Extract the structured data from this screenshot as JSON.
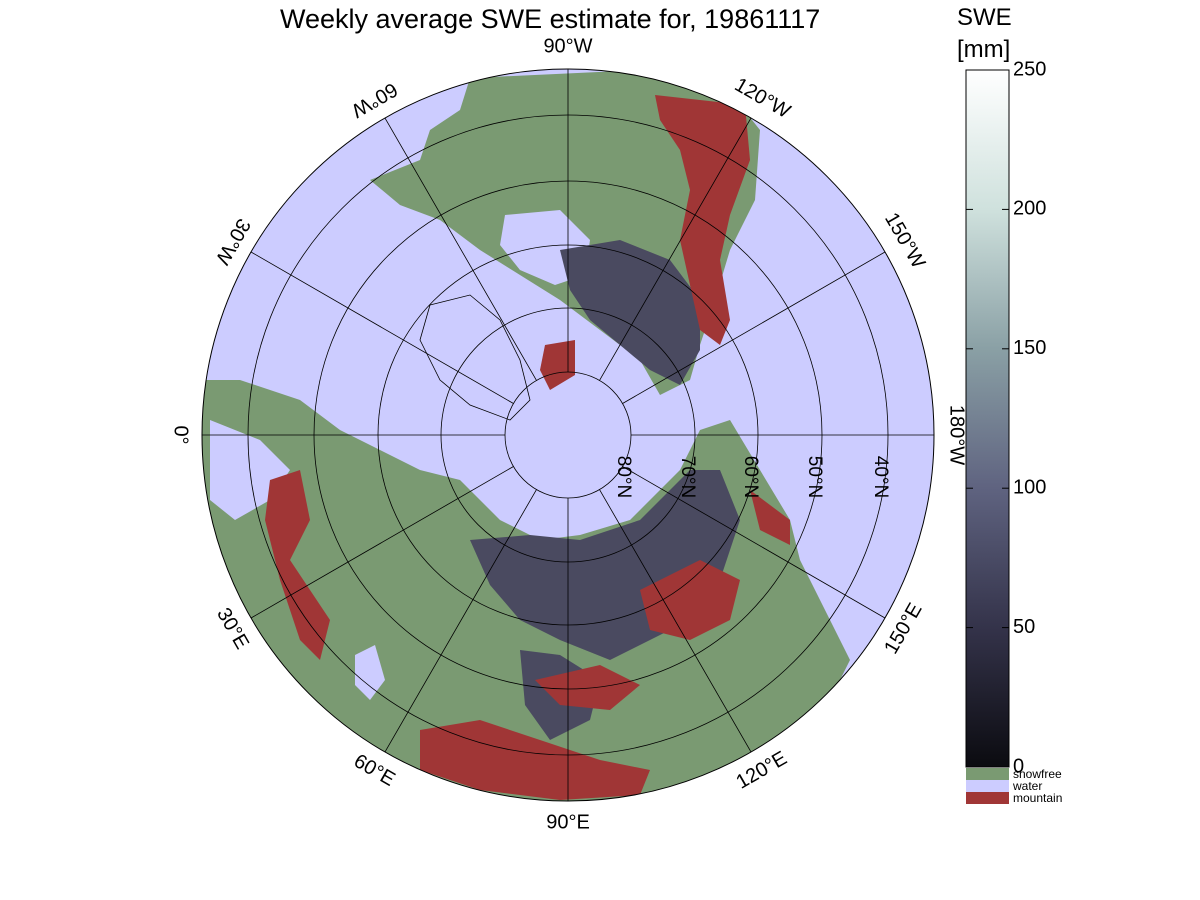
{
  "title": "Weekly average SWE estimate for, 19861117",
  "colorbar": {
    "title": "SWE",
    "unit": "[mm]",
    "ticks": [
      0,
      50,
      100,
      150,
      200,
      250
    ],
    "range": [
      0,
      250
    ],
    "gradient_colors": [
      "#0b0b10",
      "#34334a",
      "#5f6380",
      "#8aa0a5",
      "#cfe1dd",
      "#ffffff"
    ],
    "categories": [
      {
        "label": "snowfree",
        "color": "#7a9a72"
      },
      {
        "label": "water",
        "color": "#ccccff"
      },
      {
        "label": "mountain",
        "color": "#a03636"
      }
    ]
  },
  "map": {
    "projection": "north polar stereographic",
    "colors": {
      "ocean": "#ccccff",
      "land": "#7a9a72",
      "snow": "#4a4a60",
      "mountain": "#a03636",
      "grid": "#000000"
    },
    "longitude_labels": [
      "90°W",
      "120°W",
      "150°W",
      "180°W",
      "150°E",
      "120°E",
      "90°E",
      "60°E",
      "30°E",
      "0°",
      "30°W",
      "60°W"
    ],
    "latitude_labels": [
      "80°N",
      "70°N",
      "60°N",
      "50°N",
      "40°N"
    ]
  }
}
